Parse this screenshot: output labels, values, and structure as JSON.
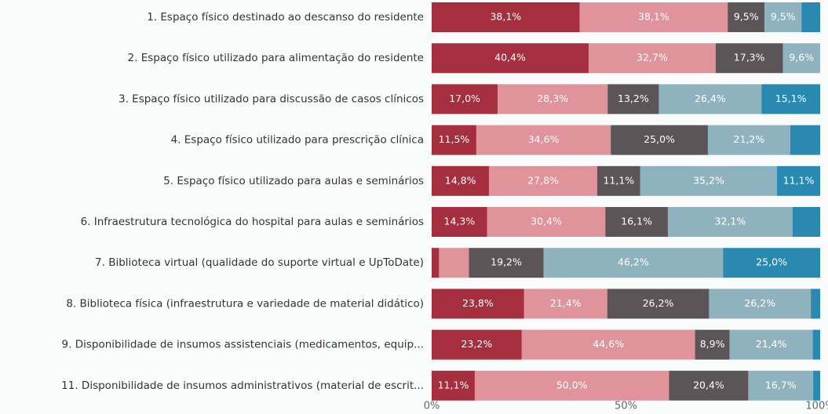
{
  "chart_data": {
    "type": "stacked_bar_100",
    "categories": [
      "1. Espaço físico destinado ao descanso do residente",
      "2. Espaço físico utilizado para alimentação do residente",
      "3. Espaço físico utilizado para discussão de casos clínicos",
      "4. Espaço físico utilizado para prescrição clínica",
      "5. Espaço físico utilizado para aulas e seminários",
      "6. Infraestrutura tecnológica do hospital para aulas e seminários",
      "7. Biblioteca virtual (qualidade do suporte virtual e UpToDate)",
      "8. Biblioteca física (infraestrutura e variedade de material didático)",
      "9. Disponibilidade de insumos assistenciais (medicamentos, equip...",
      "11. Disponibilidade de insumos administrativos (material de escrit..."
    ],
    "series": [
      {
        "color": "#a52f3e",
        "values": [
          38.1,
          40.4,
          17.0,
          11.5,
          14.8,
          14.3,
          1.9,
          23.8,
          23.2,
          11.1
        ],
        "value_labels": [
          "38,1%",
          "40,4%",
          "17,0%",
          "11,5%",
          "14,8%",
          "14,3%",
          null,
          "23,8%",
          "23,2%",
          "11,1%"
        ]
      },
      {
        "color": "#e0939b",
        "values": [
          38.1,
          32.7,
          28.3,
          34.6,
          27.8,
          30.4,
          7.7,
          21.4,
          44.6,
          50.0
        ],
        "value_labels": [
          "38,1%",
          "32,7%",
          "28,3%",
          "34,6%",
          "27,8%",
          "30,4%",
          null,
          "21,4%",
          "44,6%",
          "50,0%"
        ]
      },
      {
        "color": "#5c5557",
        "values": [
          9.5,
          17.3,
          13.2,
          25.0,
          11.1,
          16.1,
          19.2,
          26.2,
          8.9,
          20.4
        ],
        "value_labels": [
          "9,5%",
          "17,3%",
          "13,2%",
          "25,0%",
          "11,1%",
          "16,1%",
          "19,2%",
          "26,2%",
          "8,9%",
          "20,4%"
        ]
      },
      {
        "color": "#8fb3be",
        "values": [
          9.5,
          9.6,
          26.4,
          21.2,
          35.2,
          32.1,
          46.2,
          26.2,
          21.4,
          16.7
        ],
        "value_labels": [
          "9,5%",
          "9,6%",
          "26,4%",
          "21,2%",
          "35,2%",
          "32,1%",
          "46,2%",
          "26,2%",
          "21,4%",
          "16,7%"
        ]
      },
      {
        "color": "#2a89b0",
        "values": [
          4.8,
          null,
          15.1,
          7.7,
          11.1,
          7.1,
          25.0,
          2.4,
          1.9,
          1.8
        ],
        "value_labels": [
          null,
          null,
          "15,1%",
          null,
          "11,1%",
          null,
          "25,0%",
          null,
          null,
          null
        ]
      }
    ],
    "xlim": [
      0,
      100
    ],
    "xticks": [
      {
        "value": 0,
        "label": "0%"
      },
      {
        "value": 50,
        "label": "50%"
      },
      {
        "value": 100,
        "label": "100%"
      }
    ]
  }
}
